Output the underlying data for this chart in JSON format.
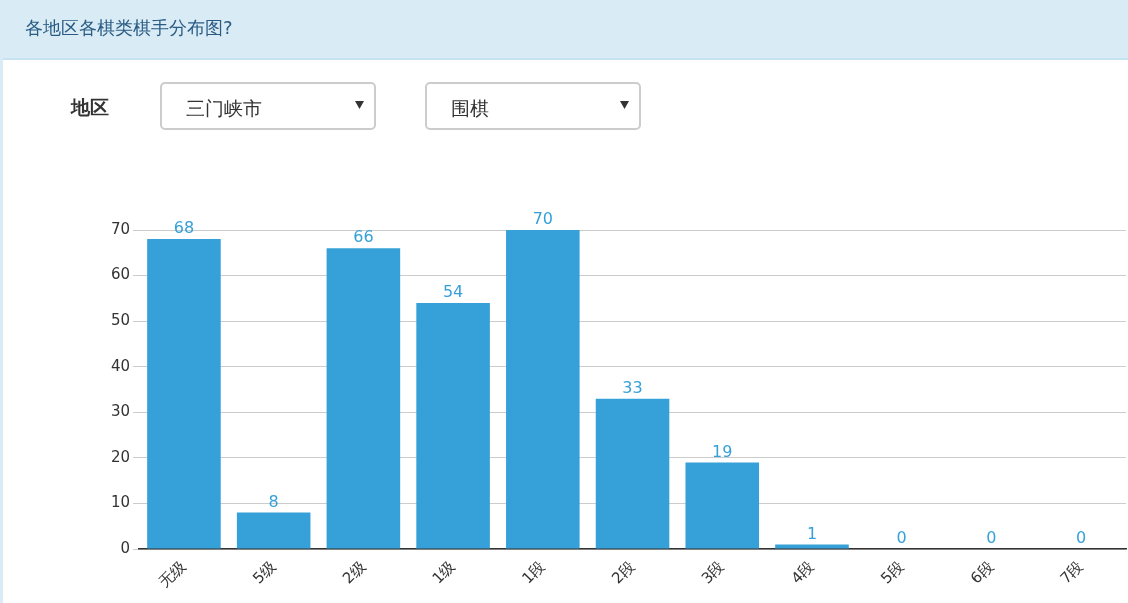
{
  "chart_data": {
    "type": "bar",
    "title": "各地区各棋类棋手分布图?",
    "annotations": [
      "地区",
      "三门峡市",
      "围棋"
    ],
    "categories": [
      "无级",
      "5级",
      "2级",
      "1级",
      "1段",
      "2段",
      "3段",
      "4段",
      "5段",
      "6段",
      "7段"
    ],
    "values": [
      68,
      8,
      66,
      54,
      70,
      33,
      19,
      1,
      0,
      0,
      0
    ],
    "color": "#36a0d9",
    "ylim": [
      0,
      70
    ],
    "yticks": [
      0,
      10,
      20,
      30,
      40,
      50,
      60,
      70
    ],
    "grid": "y",
    "data_labels": true,
    "legend": false
  }
}
